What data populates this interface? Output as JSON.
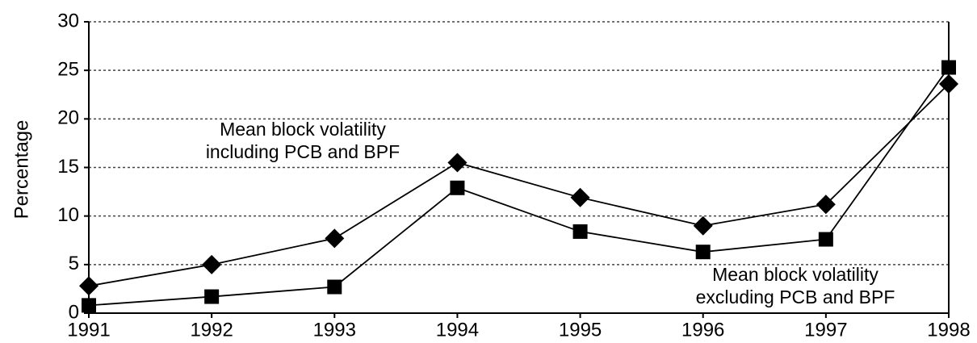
{
  "chart_data": {
    "type": "line",
    "y_label": "Percentage",
    "x": [
      1991,
      1992,
      1993,
      1994,
      1995,
      1996,
      1997,
      1998
    ],
    "series": [
      {
        "color": "#000000",
        "marker": "diamond",
        "values": [
          2.8,
          5.0,
          7.7,
          15.5,
          11.9,
          9.0,
          11.2,
          23.6
        ]
      },
      {
        "color": "#000000",
        "marker": "square",
        "values": [
          0.8,
          1.7,
          2.7,
          12.9,
          8.4,
          6.3,
          7.6,
          25.3
        ]
      }
    ],
    "annotations": [
      {
        "lines": [
          "Mean block volatility",
          "including PCB and BPF"
        ]
      },
      {
        "lines": [
          "Mean block volatility",
          "excluding PCB and BPF"
        ]
      }
    ],
    "xlim": [
      1991,
      1998
    ],
    "xticks": [
      1991,
      1992,
      1993,
      1994,
      1995,
      1996,
      1997,
      1998
    ],
    "ylim": [
      0,
      30
    ],
    "yticks": [
      0,
      5,
      10,
      15,
      20,
      25,
      30
    ],
    "grid": true
  }
}
